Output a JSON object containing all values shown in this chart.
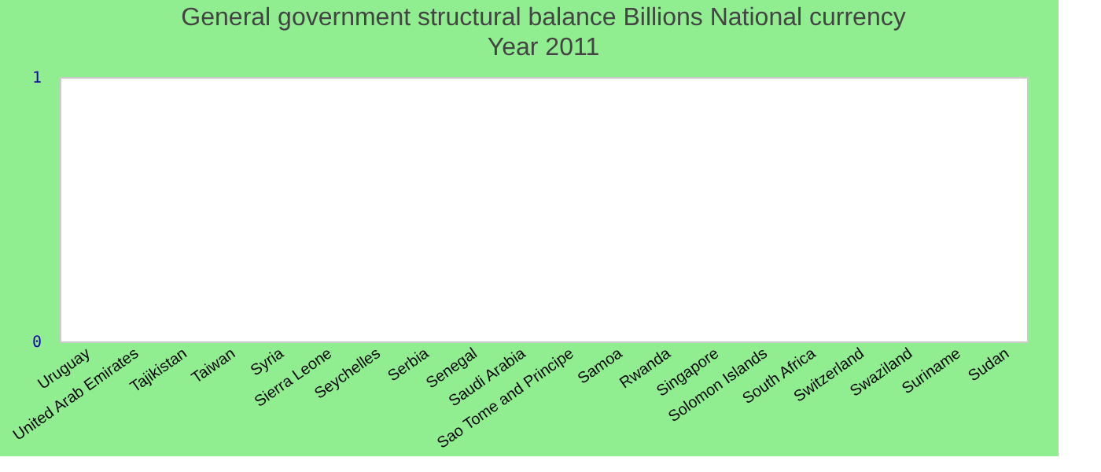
{
  "chart_data": {
    "type": "bar",
    "title": "General government structural balance Billions National currency",
    "subtitle": "Year 2011",
    "categories": [
      "Uruguay",
      "United Arab Emirates",
      "Tajikistan",
      "Taiwan",
      "Syria",
      "Sierra Leone",
      "Seychelles",
      "Serbia",
      "Senegal",
      "Saudi Arabia",
      "Sao Tome and Principe",
      "Samoa",
      "Rwanda",
      "Singapore",
      "Solomon Islands",
      "South Africa",
      "Switzerland",
      "Swaziland",
      "Suriname",
      "Sudan"
    ],
    "values": [
      0,
      0,
      0,
      0,
      0,
      0,
      0,
      0,
      0,
      0,
      0,
      0,
      0,
      0,
      0,
      0,
      0,
      0,
      0,
      0
    ],
    "ylim": [
      0,
      1
    ],
    "yticks": [
      0,
      1
    ],
    "grid": false
  }
}
